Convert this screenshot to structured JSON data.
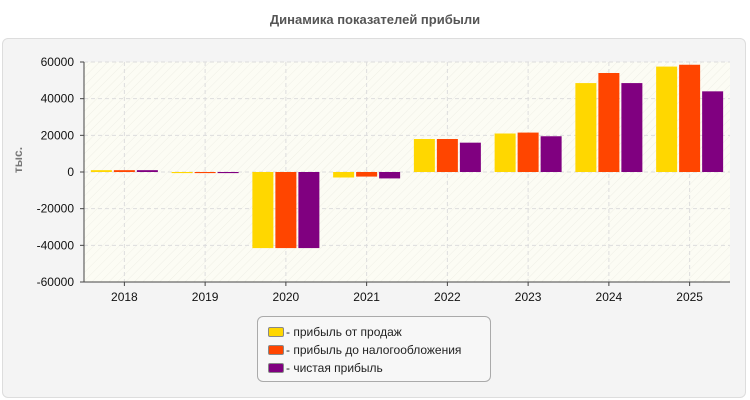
{
  "chart_data": {
    "type": "bar",
    "title": "Динамика показателей прибыли",
    "ylabel": "тыс.",
    "xlabel": "",
    "categories": [
      "2018",
      "2019",
      "2020",
      "2021",
      "2022",
      "2023",
      "2024",
      "2025"
    ],
    "ylim": [
      -60000,
      60000
    ],
    "yticks": [
      60000,
      40000,
      20000,
      0,
      -20000,
      -40000,
      -60000
    ],
    "grid": true,
    "legend_placement": "bottom",
    "series": [
      {
        "name": "- прибыль от продаж",
        "color": "#ffd700",
        "values": [
          1000,
          -600,
          -41500,
          -3000,
          18000,
          21000,
          48500,
          57500
        ]
      },
      {
        "name": "- прибыль до налогообложения",
        "color": "#ff4500",
        "values": [
          1000,
          -600,
          -41500,
          -2500,
          18000,
          21500,
          54000,
          58500
        ]
      },
      {
        "name": "- чистая прибыль",
        "color": "#800080",
        "values": [
          1000,
          -600,
          -41500,
          -3500,
          16000,
          19500,
          48500,
          44000
        ]
      }
    ]
  }
}
